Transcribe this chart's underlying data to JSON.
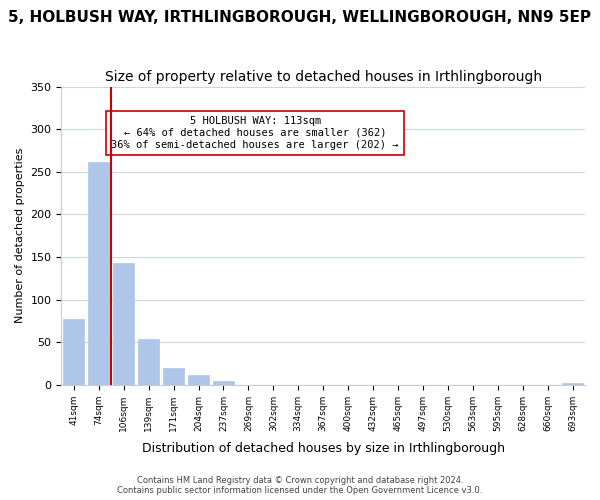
{
  "title": "5, HOLBUSH WAY, IRTHLINGBOROUGH, WELLINGBOROUGH, NN9 5EP",
  "subtitle": "Size of property relative to detached houses in Irthlingborough",
  "xlabel": "Distribution of detached houses by size in Irthlingborough",
  "ylabel": "Number of detached properties",
  "bar_labels": [
    "41sqm",
    "74sqm",
    "106sqm",
    "139sqm",
    "171sqm",
    "204sqm",
    "237sqm",
    "269sqm",
    "302sqm",
    "334sqm",
    "367sqm",
    "400sqm",
    "432sqm",
    "465sqm",
    "497sqm",
    "530sqm",
    "563sqm",
    "595sqm",
    "628sqm",
    "660sqm",
    "693sqm"
  ],
  "bar_values": [
    77,
    262,
    143,
    54,
    20,
    11,
    4,
    0,
    0,
    0,
    0,
    0,
    0,
    0,
    0,
    0,
    0,
    0,
    0,
    0,
    2
  ],
  "bar_color": "#aec6e8",
  "property_line_color": "#cc0000",
  "property_line_x": 1.5,
  "annotation_title": "5 HOLBUSH WAY: 113sqm",
  "annotation_line1": "← 64% of detached houses are smaller (362)",
  "annotation_line2": "36% of semi-detached houses are larger (202) →",
  "annotation_box_color": "#ffffff",
  "annotation_box_edge": "#cc0000",
  "ylim": [
    0,
    350
  ],
  "yticks": [
    0,
    50,
    100,
    150,
    200,
    250,
    300,
    350
  ],
  "footer_line1": "Contains HM Land Registry data © Crown copyright and database right 2024.",
  "footer_line2": "Contains public sector information licensed under the Open Government Licence v3.0.",
  "bg_color": "#ffffff",
  "grid_color": "#c8d8e8",
  "title_fontsize": 11,
  "subtitle_fontsize": 10
}
